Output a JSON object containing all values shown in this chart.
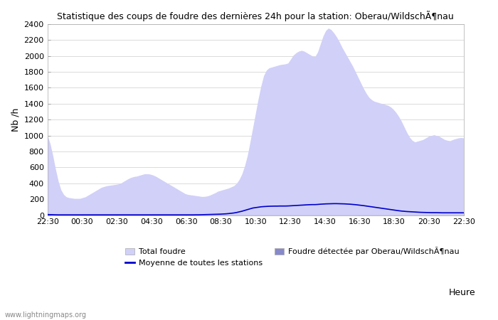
{
  "title": "Statistique des coups de foudre des dernières 24h pour la station: Oberau/WildschÃ¶nau",
  "xlabel": "Heure",
  "ylabel": "Nb /h",
  "ylim": [
    0,
    2400
  ],
  "yticks": [
    0,
    200,
    400,
    600,
    800,
    1000,
    1200,
    1400,
    1600,
    1800,
    2000,
    2200,
    2400
  ],
  "xtick_labels": [
    "22:30",
    "00:30",
    "02:30",
    "04:30",
    "06:30",
    "08:30",
    "10:30",
    "12:30",
    "14:30",
    "16:30",
    "18:30",
    "20:30",
    "22:30"
  ],
  "bg_color": "#ffffff",
  "fill_total_color": "#d0d0f8",
  "fill_local_color": "#8888cc",
  "line_color": "#0000cc",
  "watermark": "www.lightningmaps.org",
  "legend": {
    "total": "Total foudre",
    "local": "Foudre détectée par Oberau/WildschÃ¶nau",
    "mean": "Moyenne de toutes les stations"
  },
  "total_foudre": [
    1000,
    900,
    750,
    580,
    430,
    320,
    260,
    230,
    220,
    215,
    210,
    210,
    210,
    220,
    230,
    250,
    270,
    290,
    310,
    330,
    350,
    360,
    370,
    375,
    380,
    385,
    390,
    400,
    420,
    440,
    460,
    475,
    485,
    490,
    500,
    510,
    520,
    520,
    515,
    505,
    490,
    470,
    450,
    430,
    410,
    390,
    370,
    350,
    330,
    310,
    290,
    270,
    260,
    255,
    250,
    245,
    240,
    235,
    235,
    240,
    250,
    265,
    280,
    300,
    310,
    320,
    330,
    340,
    355,
    370,
    400,
    450,
    520,
    620,
    750,
    920,
    1100,
    1280,
    1460,
    1620,
    1750,
    1820,
    1850,
    1860,
    1870,
    1880,
    1890,
    1895,
    1900,
    1910,
    1960,
    2010,
    2040,
    2060,
    2070,
    2060,
    2040,
    2020,
    2000,
    1990,
    2050,
    2150,
    2250,
    2320,
    2350,
    2330,
    2290,
    2240,
    2180,
    2110,
    2050,
    1990,
    1930,
    1870,
    1800,
    1730,
    1660,
    1590,
    1530,
    1480,
    1450,
    1430,
    1420,
    1410,
    1400,
    1390,
    1380,
    1360,
    1330,
    1290,
    1240,
    1180,
    1110,
    1040,
    980,
    940,
    920,
    930,
    940,
    950,
    970,
    990,
    1000,
    1010,
    1000,
    990,
    970,
    950,
    940,
    935,
    950,
    960,
    970,
    975,
    970
  ],
  "foudre_local": [
    20,
    15,
    10,
    6,
    4,
    3,
    2,
    2,
    2,
    2,
    2,
    2,
    2,
    2,
    2,
    2,
    2,
    2,
    2,
    2,
    2,
    2,
    2,
    2,
    2,
    2,
    2,
    2,
    2,
    2,
    2,
    2,
    2,
    2,
    2,
    2,
    2,
    2,
    2,
    2,
    2,
    2,
    2,
    2,
    2,
    2,
    2,
    2,
    2,
    2,
    2,
    2,
    2,
    2,
    2,
    2,
    2,
    2,
    2,
    2,
    2,
    2,
    2,
    2,
    2,
    2,
    2,
    2,
    2,
    2,
    2,
    2,
    2,
    2,
    2,
    2,
    2,
    2,
    2,
    2,
    2,
    2,
    2,
    2,
    2,
    2,
    2,
    2,
    2,
    2,
    2,
    2,
    2,
    2,
    2,
    2,
    2,
    2,
    2,
    2,
    2,
    2,
    2,
    2,
    2,
    2,
    2,
    2,
    2,
    2,
    2,
    2,
    2,
    2,
    2,
    2,
    2,
    2,
    2,
    2,
    2,
    2,
    2,
    2,
    2,
    2,
    2,
    2,
    2,
    2,
    2,
    2,
    2,
    2,
    2,
    2,
    2,
    2,
    2,
    2,
    2,
    2,
    2,
    2,
    2,
    2,
    2,
    2,
    2,
    2,
    2,
    2,
    2,
    2,
    2
  ],
  "moyenne": [
    8,
    7,
    6,
    5,
    4,
    4,
    4,
    4,
    4,
    4,
    4,
    4,
    4,
    4,
    4,
    4,
    4,
    4,
    4,
    4,
    4,
    4,
    4,
    4,
    4,
    4,
    4,
    4,
    4,
    4,
    4,
    4,
    4,
    4,
    4,
    4,
    4,
    4,
    4,
    4,
    4,
    4,
    4,
    4,
    4,
    4,
    4,
    4,
    4,
    4,
    4,
    4,
    4,
    4,
    4,
    5,
    5,
    6,
    7,
    8,
    9,
    10,
    11,
    12,
    13,
    15,
    17,
    20,
    24,
    28,
    34,
    42,
    50,
    60,
    70,
    80,
    90,
    95,
    100,
    105,
    108,
    110,
    112,
    113,
    114,
    114,
    115,
    115,
    115,
    116,
    118,
    120,
    122,
    124,
    126,
    128,
    130,
    132,
    133,
    133,
    135,
    138,
    140,
    142,
    143,
    144,
    145,
    145,
    144,
    143,
    142,
    140,
    138,
    135,
    132,
    128,
    124,
    120,
    115,
    110,
    105,
    100,
    95,
    90,
    85,
    80,
    75,
    70,
    65,
    60,
    56,
    52,
    49,
    46,
    44,
    42,
    40,
    38,
    36,
    35,
    34,
    33,
    32,
    32,
    32,
    31,
    30,
    30,
    30,
    30,
    30,
    30,
    30,
    30,
    30
  ]
}
